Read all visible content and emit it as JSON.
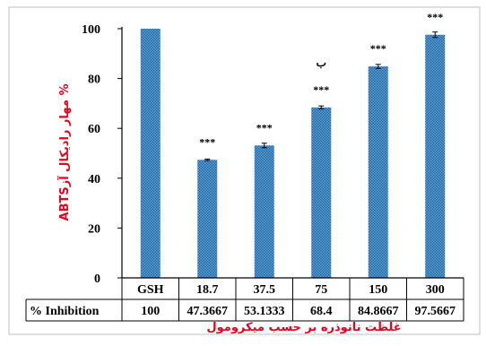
{
  "chart_data": {
    "type": "bar",
    "categories": [
      "GSH",
      "18.7",
      "37.5",
      "75",
      "150",
      "300"
    ],
    "values": [
      100,
      47.3667,
      53.1333,
      68.4,
      84.8667,
      97.5667
    ],
    "errors": [
      0,
      0.3,
      0.9,
      0.6,
      0.8,
      1.1
    ],
    "significance": [
      "",
      "***",
      "***",
      "***",
      "***",
      "***"
    ],
    "extra_annotation": {
      "category_index": 3,
      "text": "ب"
    },
    "ylim": [
      0,
      100
    ],
    "yticks": [
      "0",
      "20",
      "40",
      "60",
      "80",
      "100"
    ],
    "ylabel": "% مهار رادیکال آزABTS",
    "xlabel": "غلظت نانوذره بر حسب میکرومول",
    "bar_color": "#4a90c8",
    "grid": false,
    "table": {
      "row_label": "% Inhibition",
      "values": [
        "100",
        "47.3667",
        "53.1333",
        "68.4",
        "84.8667",
        "97.5667"
      ]
    }
  },
  "colors": {
    "axis_title": "#e8001c",
    "bar": "#4a90c8",
    "bar_dot": "#1f5f9a"
  }
}
